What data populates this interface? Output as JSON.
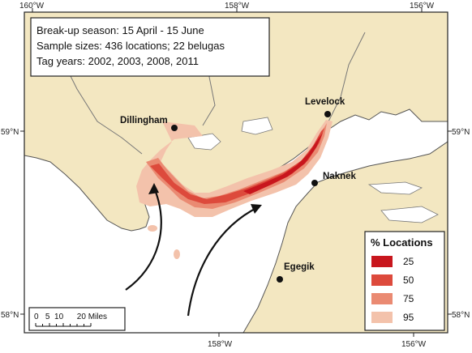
{
  "map": {
    "info_box": {
      "season": "Break-up season:  15 April - 15 June",
      "sample": "Sample sizes:  436 locations; 22 belugas",
      "tag_years": "Tag years: 2002, 2003, 2008, 2011"
    },
    "places": {
      "dillingham": "Dillingham",
      "levelock": "Levelock",
      "naknek": "Naknek",
      "egegik": "Egegik"
    },
    "axes": {
      "top": [
        "160°W",
        "158°W",
        "156°W"
      ],
      "bottom": [
        "158°W",
        "156°W"
      ],
      "left": [
        "59°N",
        "58°N"
      ],
      "right": [
        "59°N",
        "58°N"
      ]
    },
    "legend": {
      "title": "% Locations",
      "items": [
        {
          "label": "25",
          "color": "#c8161d"
        },
        {
          "label": "50",
          "color": "#dd4a3c"
        },
        {
          "label": "75",
          "color": "#ea8a72"
        },
        {
          "label": "95",
          "color": "#f3c2ab"
        }
      ]
    },
    "scale_bar": {
      "label": "0   5  10      20 Miles"
    },
    "colors": {
      "land": "#f3e7c1",
      "water": "#ffffff",
      "border": "#2b2b2b"
    }
  }
}
